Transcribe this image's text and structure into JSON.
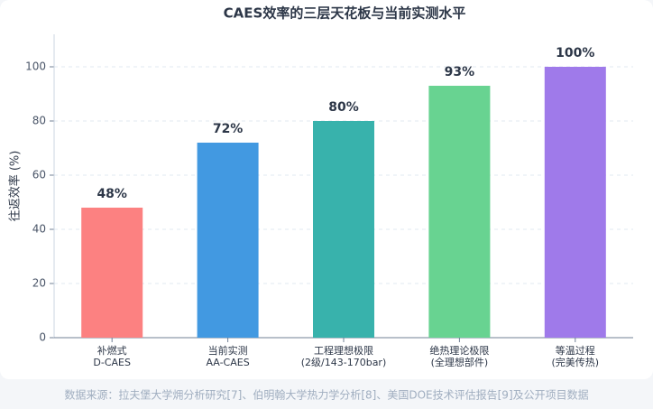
{
  "chart_data": {
    "type": "bar",
    "title": "CAES效率的三层天花板与当前实测水平",
    "y_label": "往返效率 (%)",
    "categories": [
      [
        "补燃式",
        "D-CAES"
      ],
      [
        "当前实测",
        "AA-CAES"
      ],
      [
        "工程理想极限",
        "(2级/143-170bar)"
      ],
      [
        "绝热理论极限",
        "(全理想部件)"
      ],
      [
        "等温过程",
        "(完美传热)"
      ]
    ],
    "values": [
      48,
      72,
      80,
      93,
      100
    ],
    "value_labels": [
      "48%",
      "72%",
      "80%",
      "93%",
      "100%"
    ],
    "colors": [
      "#fc8181",
      "#4299e1",
      "#38b2ac",
      "#68d391",
      "#9f7aea"
    ],
    "ylim": [
      0,
      112
    ],
    "yticks": [
      0,
      20,
      40,
      60,
      80,
      100
    ],
    "grid": true,
    "source": "数据来源：拉夫堡大学㶲分析研究[7]、伯明翰大学热力学分析[8]、美国DOE技术评估报告[9]及公开项目数据"
  }
}
